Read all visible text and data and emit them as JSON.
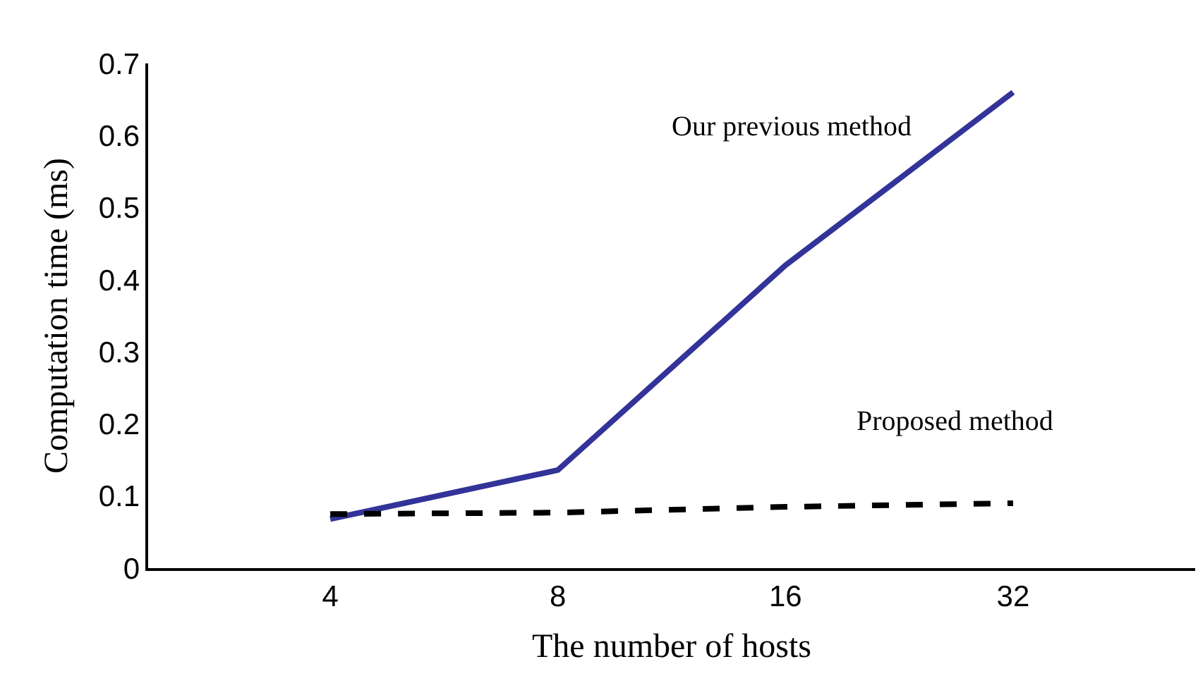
{
  "chart_data": {
    "type": "line",
    "xlabel": "The number of hosts",
    "ylabel": "Computation time (ms)",
    "categories": [
      "4",
      "8",
      "16",
      "32"
    ],
    "series": [
      {
        "name": "Our previous method",
        "color": "#333399",
        "values": [
          0.068,
          0.136,
          0.42,
          0.66
        ],
        "line_style": "solid"
      },
      {
        "name": "Proposed method",
        "color": "#000000",
        "values": [
          0.075,
          0.077,
          0.085,
          0.09
        ],
        "line_style": "dashed"
      }
    ],
    "ylim": [
      0,
      0.7
    ],
    "yticks": [
      0,
      0.1,
      0.2,
      0.3,
      0.4,
      0.5,
      0.6,
      0.7
    ],
    "legend": false,
    "marker": "none"
  }
}
